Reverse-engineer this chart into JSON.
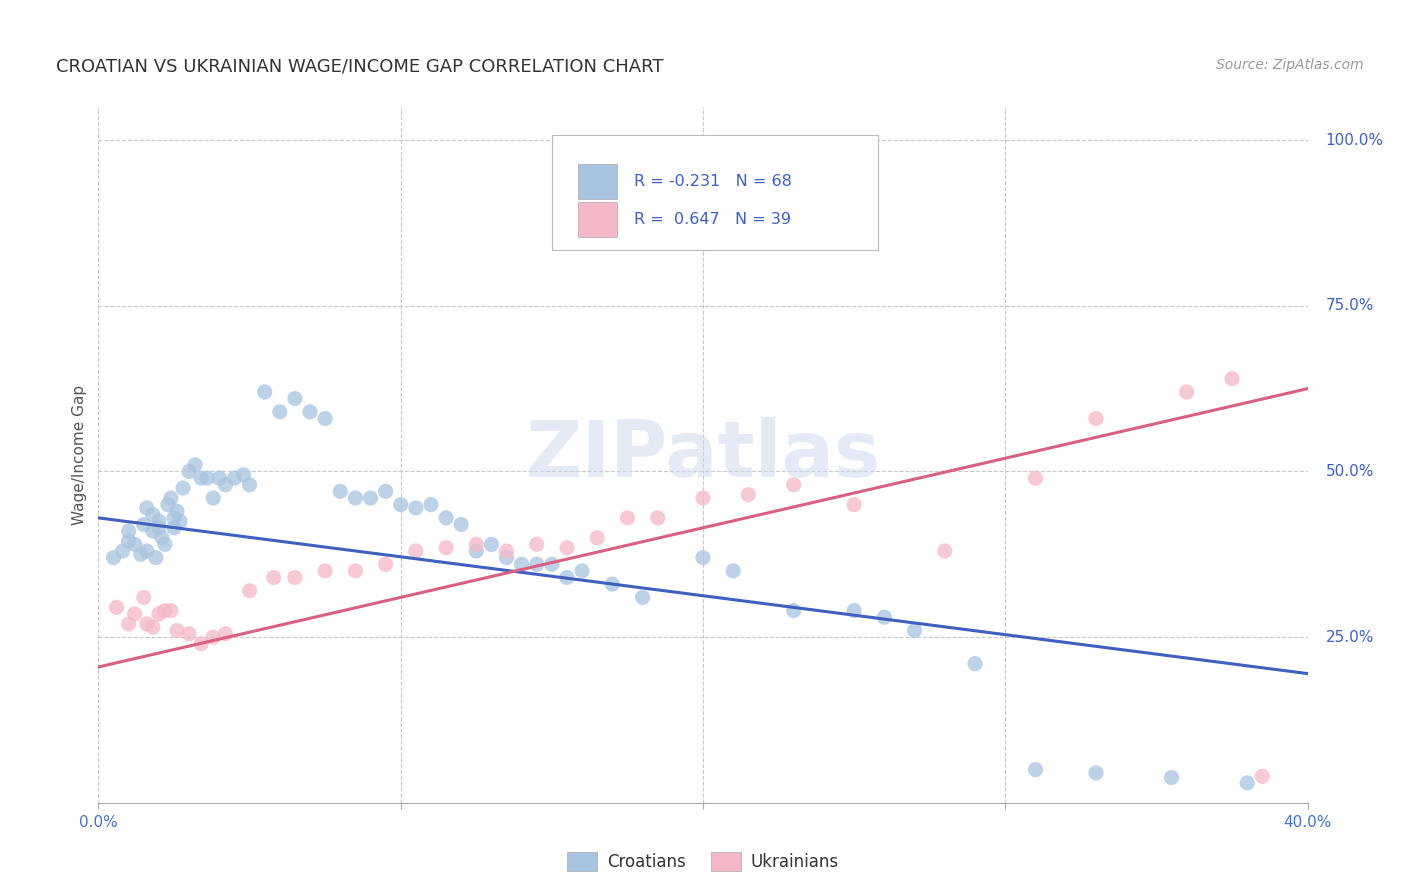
{
  "title": "CROATIAN VS UKRAINIAN WAGE/INCOME GAP CORRELATION CHART",
  "source": "Source: ZipAtlas.com",
  "ylabel": "Wage/Income Gap",
  "xlim": [
    0.0,
    0.4
  ],
  "ylim": [
    0.0,
    1.05
  ],
  "xticks": [
    0.0,
    0.1,
    0.2,
    0.3,
    0.4
  ],
  "xtick_labels": [
    "0.0%",
    "",
    "",
    "",
    "40.0%"
  ],
  "yticks_right": [
    0.25,
    0.5,
    0.75,
    1.0
  ],
  "ytick_labels_right": [
    "25.0%",
    "50.0%",
    "75.0%",
    "100.0%"
  ],
  "background_color": "#ffffff",
  "grid_color": "#c8c8c8",
  "croatian_color": "#a8c4e0",
  "ukrainian_color": "#f4b8c8",
  "croatian_line_color": "#4060c0",
  "ukrainian_line_color": "#d86080",
  "croatian_scatter_x": [
    0.005,
    0.008,
    0.01,
    0.01,
    0.012,
    0.014,
    0.015,
    0.016,
    0.016,
    0.018,
    0.018,
    0.019,
    0.02,
    0.02,
    0.021,
    0.022,
    0.023,
    0.024,
    0.025,
    0.025,
    0.026,
    0.027,
    0.028,
    0.03,
    0.032,
    0.034,
    0.036,
    0.038,
    0.04,
    0.042,
    0.045,
    0.048,
    0.05,
    0.055,
    0.06,
    0.065,
    0.07,
    0.075,
    0.08,
    0.085,
    0.09,
    0.095,
    0.1,
    0.105,
    0.11,
    0.115,
    0.12,
    0.125,
    0.13,
    0.135,
    0.14,
    0.145,
    0.15,
    0.155,
    0.16,
    0.17,
    0.18,
    0.2,
    0.21,
    0.23,
    0.25,
    0.26,
    0.27,
    0.29,
    0.31,
    0.33,
    0.355,
    0.38
  ],
  "croatian_scatter_y": [
    0.37,
    0.38,
    0.395,
    0.41,
    0.39,
    0.375,
    0.42,
    0.445,
    0.38,
    0.41,
    0.435,
    0.37,
    0.425,
    0.415,
    0.4,
    0.39,
    0.45,
    0.46,
    0.415,
    0.43,
    0.44,
    0.425,
    0.475,
    0.5,
    0.51,
    0.49,
    0.49,
    0.46,
    0.49,
    0.48,
    0.49,
    0.495,
    0.48,
    0.62,
    0.59,
    0.61,
    0.59,
    0.58,
    0.47,
    0.46,
    0.46,
    0.47,
    0.45,
    0.445,
    0.45,
    0.43,
    0.42,
    0.38,
    0.39,
    0.37,
    0.36,
    0.36,
    0.36,
    0.34,
    0.35,
    0.33,
    0.31,
    0.37,
    0.35,
    0.29,
    0.29,
    0.28,
    0.26,
    0.21,
    0.05,
    0.045,
    0.038,
    0.03
  ],
  "ukrainian_scatter_x": [
    0.006,
    0.01,
    0.012,
    0.015,
    0.016,
    0.018,
    0.02,
    0.022,
    0.024,
    0.026,
    0.03,
    0.034,
    0.038,
    0.042,
    0.05,
    0.058,
    0.065,
    0.075,
    0.085,
    0.095,
    0.105,
    0.115,
    0.125,
    0.135,
    0.145,
    0.155,
    0.165,
    0.175,
    0.185,
    0.2,
    0.215,
    0.23,
    0.25,
    0.28,
    0.31,
    0.33,
    0.36,
    0.375,
    0.385
  ],
  "ukrainian_scatter_y": [
    0.295,
    0.27,
    0.285,
    0.31,
    0.27,
    0.265,
    0.285,
    0.29,
    0.29,
    0.26,
    0.255,
    0.24,
    0.25,
    0.255,
    0.32,
    0.34,
    0.34,
    0.35,
    0.35,
    0.36,
    0.38,
    0.385,
    0.39,
    0.38,
    0.39,
    0.385,
    0.4,
    0.43,
    0.43,
    0.46,
    0.465,
    0.48,
    0.45,
    0.38,
    0.49,
    0.58,
    0.62,
    0.64,
    0.04
  ],
  "croatian_trend_x": [
    0.0,
    0.4
  ],
  "croatian_trend_y": [
    0.43,
    0.195
  ],
  "ukrainian_trend_x": [
    0.0,
    0.4
  ],
  "ukrainian_trend_y": [
    0.205,
    0.625
  ]
}
